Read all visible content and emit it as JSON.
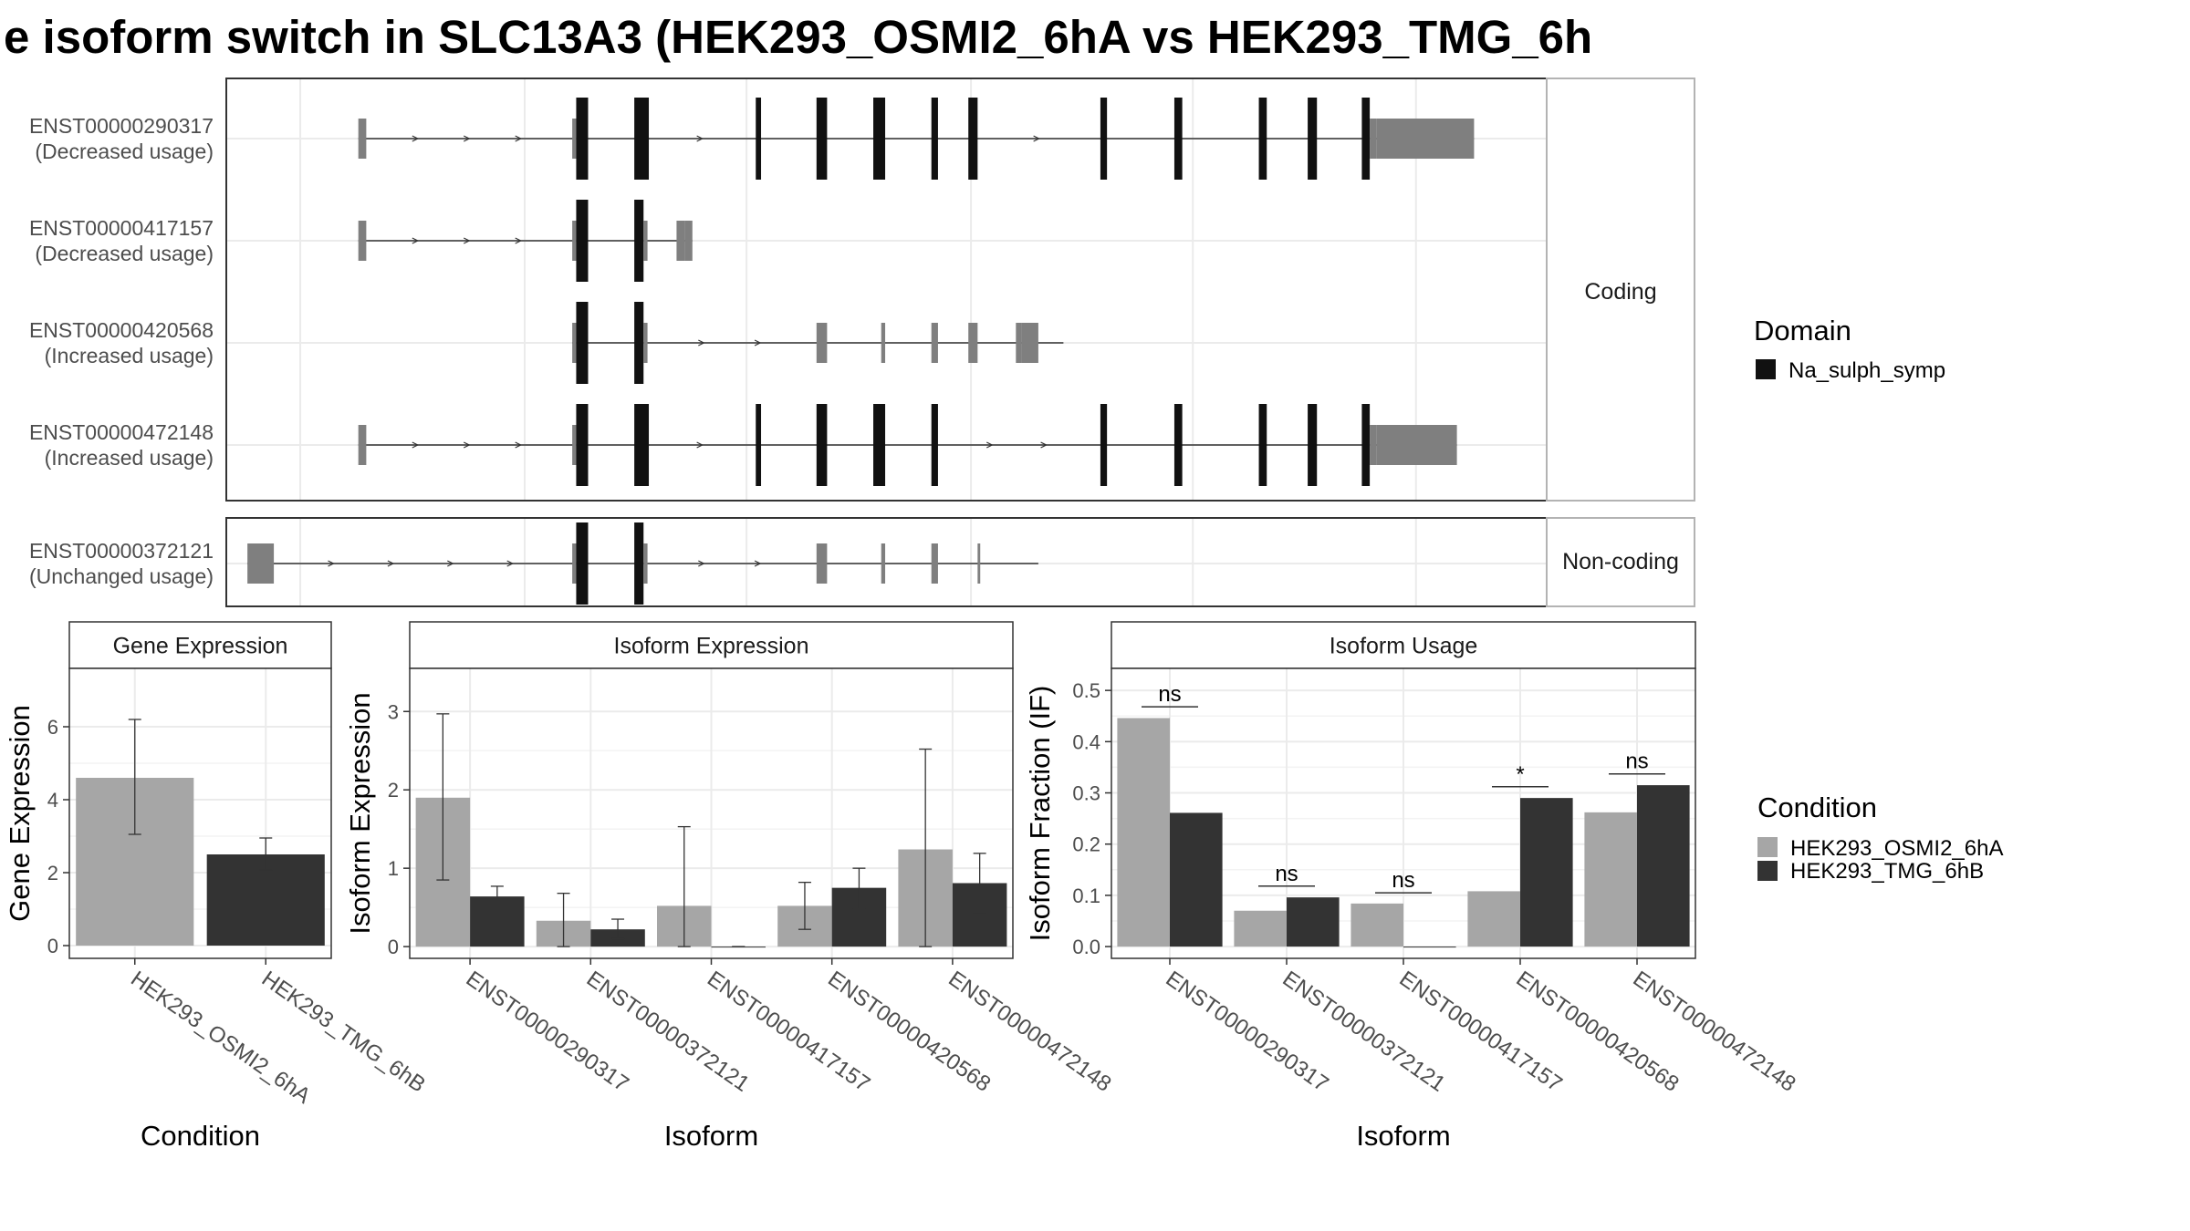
{
  "title": "e isoform switch in SLC13A3 (HEK293_OSMI2_6hA vs HEK293_TMG_6h",
  "colors": {
    "domain": "#111111",
    "exon": "#7f7f7f",
    "cond1": "#a6a6a6",
    "cond2": "#333333",
    "grid": "#ebebeb",
    "strip_bg": "#ffffff",
    "text": "#4d4d4d"
  },
  "chart_data": [
    {
      "type": "gene-structure",
      "panels": [
        "Coding",
        "Non-coding"
      ],
      "x_range": [
        0,
        100
      ],
      "transcripts": [
        {
          "id": "ENST00000290317",
          "usage": "(Decreased usage)",
          "panel": "Coding",
          "span": [
            10.0,
            94.5
          ],
          "exons": [
            [
              10.0,
              10.6,
              "noncoding"
            ],
            [
              26.2,
              26.5,
              "noncoding"
            ],
            [
              26.5,
              27.4,
              "domain"
            ],
            [
              30.9,
              32.0,
              "domain"
            ],
            [
              40.1,
              40.5,
              "domain"
            ],
            [
              44.7,
              45.5,
              "domain"
            ],
            [
              49.0,
              49.9,
              "domain"
            ],
            [
              53.4,
              53.9,
              "domain"
            ],
            [
              56.2,
              56.9,
              "domain"
            ],
            [
              66.2,
              66.7,
              "domain"
            ],
            [
              71.8,
              72.4,
              "domain"
            ],
            [
              78.2,
              78.8,
              "domain"
            ],
            [
              81.9,
              82.6,
              "domain"
            ],
            [
              86.0,
              86.6,
              "domain"
            ],
            [
              86.6,
              87.1,
              "noncoding"
            ],
            [
              87.1,
              94.5,
              "noncoding-tall"
            ]
          ]
        },
        {
          "id": "ENST00000417157",
          "usage": "(Decreased usage)",
          "panel": "Coding",
          "span": [
            10.0,
            35.3
          ],
          "exons": [
            [
              10.0,
              10.6,
              "noncoding"
            ],
            [
              26.2,
              26.5,
              "noncoding"
            ],
            [
              26.5,
              27.4,
              "domain"
            ],
            [
              30.9,
              31.6,
              "domain"
            ],
            [
              31.6,
              31.9,
              "noncoding"
            ],
            [
              34.1,
              34.7,
              "noncoding"
            ],
            [
              34.7,
              35.3,
              "noncoding-tall"
            ]
          ]
        },
        {
          "id": "ENST00000420568",
          "usage": "(Increased usage)",
          "panel": "Coding",
          "span": [
            26.2,
            63.4
          ],
          "exons": [
            [
              26.2,
              26.5,
              "noncoding"
            ],
            [
              26.5,
              27.4,
              "domain"
            ],
            [
              30.9,
              31.6,
              "domain"
            ],
            [
              31.6,
              31.9,
              "noncoding"
            ],
            [
              44.7,
              45.5,
              "noncoding"
            ],
            [
              49.6,
              49.9,
              "noncoding"
            ],
            [
              53.4,
              53.9,
              "noncoding"
            ],
            [
              56.2,
              56.9,
              "noncoding"
            ],
            [
              59.8,
              60.2,
              "noncoding"
            ],
            [
              60.2,
              61.5,
              "noncoding-tall"
            ]
          ]
        },
        {
          "id": "ENST00000472148",
          "usage": "(Increased usage)",
          "panel": "Coding",
          "span": [
            10.0,
            93.2
          ],
          "exons": [
            [
              10.0,
              10.6,
              "noncoding"
            ],
            [
              26.2,
              26.5,
              "noncoding"
            ],
            [
              26.5,
              27.4,
              "domain"
            ],
            [
              30.9,
              32.0,
              "domain"
            ],
            [
              40.1,
              40.5,
              "domain"
            ],
            [
              44.7,
              45.5,
              "domain"
            ],
            [
              49.0,
              49.9,
              "domain"
            ],
            [
              53.4,
              53.9,
              "domain"
            ],
            [
              66.2,
              66.7,
              "domain"
            ],
            [
              71.8,
              72.4,
              "domain"
            ],
            [
              78.2,
              78.8,
              "domain"
            ],
            [
              81.9,
              82.6,
              "domain"
            ],
            [
              86.0,
              86.6,
              "domain"
            ],
            [
              86.6,
              87.1,
              "noncoding"
            ],
            [
              87.1,
              93.2,
              "noncoding-tall"
            ]
          ]
        },
        {
          "id": "ENST00000372121",
          "usage": "(Unchanged usage)",
          "panel": "Non-coding",
          "span": [
            1.6,
            61.5
          ],
          "exons": [
            [
              1.6,
              3.6,
              "noncoding-tall"
            ],
            [
              26.2,
              26.5,
              "noncoding"
            ],
            [
              26.5,
              27.4,
              "domain"
            ],
            [
              30.9,
              31.6,
              "domain"
            ],
            [
              31.6,
              31.9,
              "noncoding"
            ],
            [
              44.7,
              45.5,
              "noncoding"
            ],
            [
              49.6,
              49.9,
              "noncoding"
            ],
            [
              53.4,
              53.9,
              "noncoding"
            ],
            [
              56.9,
              57.1,
              "noncoding"
            ]
          ]
        }
      ],
      "legend": {
        "title": "Domain",
        "items": [
          "Na_sulph_symp"
        ]
      }
    },
    {
      "type": "bar",
      "title": "Gene Expression",
      "xlabel": "Condition",
      "ylabel": "Gene Expression",
      "categories": [
        "HEK293_OSMI2_6hA",
        "HEK293_TMG_6hB"
      ],
      "values": [
        4.6,
        2.5
      ],
      "error_low": [
        3.05,
        2.07
      ],
      "error_high": [
        6.2,
        2.95
      ],
      "ylim": [
        -0.35,
        7.6
      ],
      "yticks": [
        0,
        2,
        4,
        6
      ]
    },
    {
      "type": "bar",
      "title": "Isoform Expression",
      "xlabel": "Isoform",
      "ylabel": "Isoform Expression",
      "categories": [
        "ENST00000290317",
        "ENST00000372121",
        "ENST00000417157",
        "ENST00000420568",
        "ENST00000472148"
      ],
      "series": [
        {
          "name": "HEK293_OSMI2_6hA",
          "values": [
            1.9,
            0.33,
            0.52,
            0.52,
            1.24
          ],
          "error_low": [
            0.85,
            0.0,
            0.0,
            0.22,
            0.0
          ],
          "error_high": [
            2.97,
            0.68,
            1.53,
            0.82,
            2.52
          ]
        },
        {
          "name": "HEK293_TMG_6hB",
          "values": [
            0.64,
            0.22,
            0.0,
            0.75,
            0.81
          ],
          "error_low": [
            0.5,
            0.1,
            0.0,
            0.48,
            0.43
          ],
          "error_high": [
            0.77,
            0.35,
            0.0,
            1.0,
            1.19
          ]
        }
      ],
      "ylim": [
        -0.15,
        3.55
      ],
      "yticks": [
        0,
        1,
        2,
        3
      ]
    },
    {
      "type": "bar",
      "title": "Isoform Usage",
      "xlabel": "Isoform",
      "ylabel": "Isoform Fraction (IF)",
      "categories": [
        "ENST00000290317",
        "ENST00000372121",
        "ENST00000417157",
        "ENST00000420568",
        "ENST00000472148"
      ],
      "series": [
        {
          "name": "HEK293_OSMI2_6hA",
          "values": [
            0.446,
            0.07,
            0.084,
            0.108,
            0.262
          ]
        },
        {
          "name": "HEK293_TMG_6hB",
          "values": [
            0.261,
            0.096,
            0.0,
            0.29,
            0.315
          ]
        }
      ],
      "significance": [
        "ns",
        "ns",
        "ns",
        "*",
        "ns"
      ],
      "sig_y": [
        0.468,
        0.118,
        0.105,
        0.312,
        0.337
      ],
      "ylim": [
        -0.023,
        0.543
      ],
      "yticks": [
        0.0,
        0.1,
        0.2,
        0.3,
        0.4,
        0.5
      ],
      "ytick_labels": [
        "0.0",
        "0.1",
        "0.2",
        "0.3",
        "0.4",
        "0.5"
      ],
      "legend": {
        "title": "Condition",
        "items": [
          "HEK293_OSMI2_6hA",
          "HEK293_TMG_6hB"
        ]
      }
    }
  ]
}
